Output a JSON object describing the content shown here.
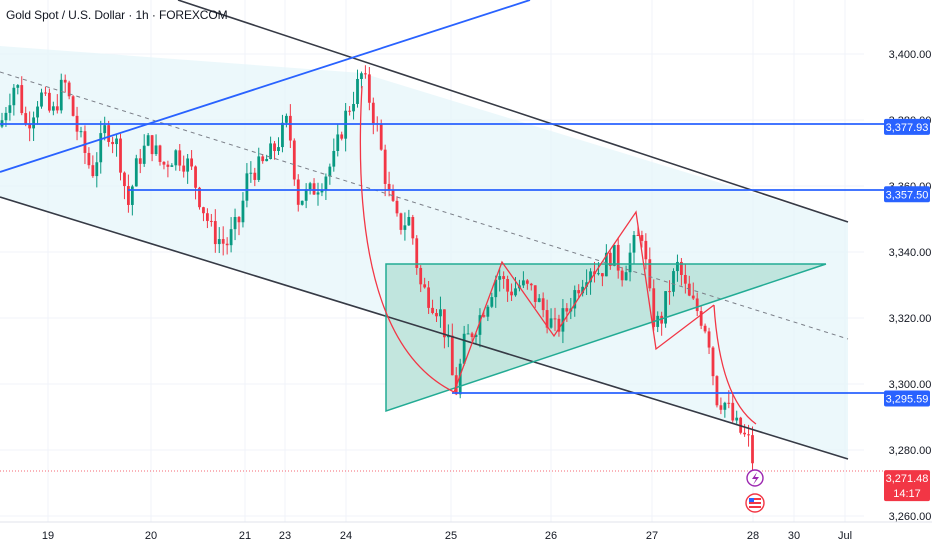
{
  "header": {
    "title": "Gold Spot / U.S. Dollar · 1h · FOREXCOM"
  },
  "colors": {
    "up": "#089981",
    "down": "#f23645",
    "level": "#2962ff",
    "channel": "#363a45",
    "triangle": "#22ab94",
    "pattern": "#f23645",
    "price": "#f23645"
  },
  "chart_data": {
    "type": "candlestick",
    "symbol": "Gold Spot / U.S. Dollar",
    "interval": "1h",
    "exchange": "FOREXCOM",
    "x_labels": [
      "19",
      "20",
      "21",
      "23",
      "24",
      "25",
      "26",
      "27",
      "28",
      "30",
      "Jul"
    ],
    "y_ticks": [
      "3,400.00",
      "3,380.00",
      "3,360.00",
      "3,340.00",
      "3,320.00",
      "3,300.00",
      "3,280.00",
      "3,260.00"
    ],
    "ylim": [
      3256,
      3422
    ],
    "horizontal_levels": [
      {
        "label": "3,377.93",
        "value": 3377.93
      },
      {
        "label": "3,357.50",
        "value": 3357.5
      },
      {
        "label": "3,295.59",
        "value": 3295.59
      }
    ],
    "last_price": {
      "label": "3,271.48",
      "value": 3271.48,
      "countdown": "14:17"
    },
    "close_path": [
      [
        0,
        3378
      ],
      [
        8,
        3386
      ],
      [
        16,
        3392
      ],
      [
        26,
        3378
      ],
      [
        40,
        3388
      ],
      [
        52,
        3381
      ],
      [
        64,
        3392
      ],
      [
        78,
        3376
      ],
      [
        92,
        3364
      ],
      [
        106,
        3378
      ],
      [
        118,
        3372
      ],
      [
        128,
        3354
      ],
      [
        138,
        3368
      ],
      [
        150,
        3374
      ],
      [
        162,
        3366
      ],
      [
        176,
        3370
      ],
      [
        190,
        3366
      ],
      [
        200,
        3356
      ],
      [
        212,
        3346
      ],
      [
        226,
        3342
      ],
      [
        240,
        3350
      ],
      [
        248,
        3364
      ],
      [
        262,
        3366
      ],
      [
        276,
        3372
      ],
      [
        288,
        3380
      ],
      [
        298,
        3356
      ],
      [
        310,
        3358
      ],
      [
        322,
        3362
      ],
      [
        334,
        3368
      ],
      [
        344,
        3380
      ],
      [
        352,
        3386
      ],
      [
        362,
        3394
      ],
      [
        368,
        3388
      ],
      [
        378,
        3376
      ],
      [
        388,
        3358
      ],
      [
        398,
        3348
      ],
      [
        410,
        3350
      ],
      [
        420,
        3330
      ],
      [
        430,
        3326
      ],
      [
        440,
        3322
      ],
      [
        448,
        3312
      ],
      [
        455,
        3296
      ],
      [
        464,
        3312
      ],
      [
        476,
        3318
      ],
      [
        488,
        3326
      ],
      [
        498,
        3334
      ],
      [
        508,
        3328
      ],
      [
        520,
        3330
      ],
      [
        532,
        3328
      ],
      [
        544,
        3322
      ],
      [
        556,
        3316
      ],
      [
        566,
        3322
      ],
      [
        578,
        3330
      ],
      [
        590,
        3336
      ],
      [
        600,
        3334
      ],
      [
        612,
        3340
      ],
      [
        622,
        3334
      ],
      [
        634,
        3342
      ],
      [
        642,
        3346
      ],
      [
        652,
        3320
      ],
      [
        660,
        3318
      ],
      [
        668,
        3328
      ],
      [
        678,
        3336
      ],
      [
        688,
        3326
      ],
      [
        698,
        3322
      ],
      [
        708,
        3316
      ],
      [
        716,
        3296
      ],
      [
        726,
        3294
      ],
      [
        734,
        3288
      ],
      [
        744,
        3284
      ],
      [
        750,
        3282
      ],
      [
        755,
        3272
      ]
    ]
  }
}
